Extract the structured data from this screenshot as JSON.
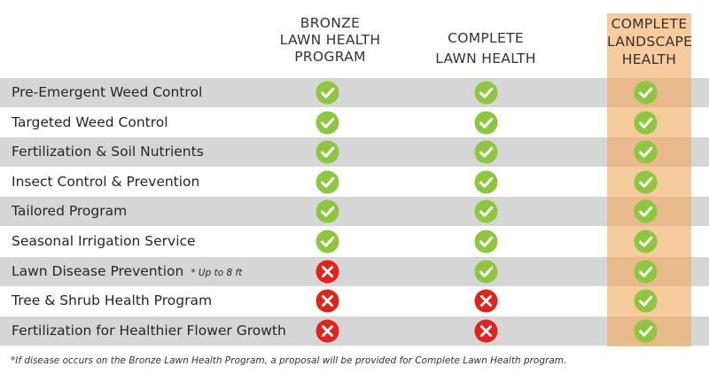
{
  "colors": {
    "check": "#8dc63f",
    "cross": "#e2231a",
    "highlight": "#f7cc9c",
    "highlight_shaded": "#e8b98a",
    "row_shade": "#d6d6d6"
  },
  "columns": [
    {
      "label": "BRONZE\nLAWN HEALTH\nPROGRAM"
    },
    {
      "label": "COMPLETE\nLAWN HEALTH"
    },
    {
      "label": "COMPLETE\nLANDSCAPE\nHEALTH"
    }
  ],
  "rows": [
    {
      "feature": "Pre-Emergent Weed Control",
      "note": "",
      "marks": [
        "check-icon",
        "check-icon",
        "check-icon"
      ]
    },
    {
      "feature": "Targeted Weed Control",
      "note": "",
      "marks": [
        "check-icon",
        "check-icon",
        "check-icon"
      ]
    },
    {
      "feature": "Fertilization & Soil Nutrients",
      "note": "",
      "marks": [
        "check-icon",
        "check-icon",
        "check-icon"
      ]
    },
    {
      "feature": "Insect Control & Prevention",
      "note": "",
      "marks": [
        "check-icon",
        "check-icon",
        "check-icon"
      ]
    },
    {
      "feature": "Tailored Program",
      "note": "",
      "marks": [
        "check-icon",
        "check-icon",
        "check-icon"
      ]
    },
    {
      "feature": "Seasonal Irrigation Service",
      "note": "",
      "marks": [
        "check-icon",
        "check-icon",
        "check-icon"
      ]
    },
    {
      "feature": "Lawn Disease Prevention",
      "note": "* Up to 8 ft",
      "marks": [
        "cross-icon",
        "check-icon",
        "check-icon"
      ]
    },
    {
      "feature": "Tree & Shrub Health Program",
      "note": "",
      "marks": [
        "cross-icon",
        "cross-icon",
        "check-icon"
      ]
    },
    {
      "feature": "Fertilization for Healthier Flower Growth",
      "note": "",
      "marks": [
        "cross-icon",
        "cross-icon",
        "check-icon"
      ]
    }
  ],
  "footnote": "*If disease occurs on the Bronze Lawn Health Program, a proposal will be provided for Complete Lawn Health program."
}
